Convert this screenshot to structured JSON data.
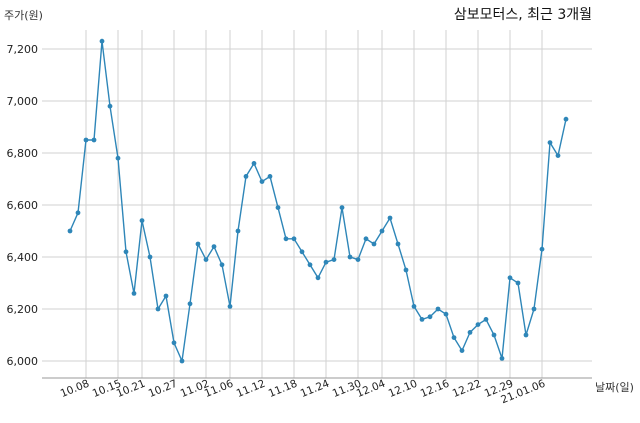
{
  "chart_data": {
    "type": "line",
    "title": "삼보모터스, 최근 3개월",
    "xlabel": "날짜(일)",
    "ylabel": "주가(원)",
    "ylim": [
      5950,
      7300
    ],
    "y_ticks": [
      6000,
      6200,
      6400,
      6600,
      6800,
      7000,
      7200
    ],
    "y_tick_labels": [
      "6,000",
      "6,200",
      "6,400",
      "6,600",
      "6,800",
      "7,000",
      "7,200"
    ],
    "x_tick_labels": [
      "10.08",
      "10.15",
      "10.21",
      "10.27",
      "11.02",
      "11.06",
      "11.12",
      "11.18",
      "11.24",
      "11.30",
      "12.04",
      "12.10",
      "12.16",
      "12.22",
      "12.29",
      "21.01.06"
    ],
    "x_tick_indices": [
      2,
      6,
      9,
      13,
      17,
      20,
      24,
      28,
      32,
      36,
      39,
      43,
      47,
      51,
      55,
      59
    ],
    "grid": true,
    "line_color": "#2e86b8",
    "series": [
      {
        "values": [
          6500,
          6570,
          6850,
          6850,
          7230,
          6980,
          6780,
          6420,
          6260,
          6540,
          6400,
          6200,
          6250,
          6070,
          6000,
          6220,
          6450,
          6390,
          6440,
          6370,
          6210,
          6500,
          6710,
          6760,
          6690,
          6710,
          6590,
          6470,
          6470,
          6420,
          6370,
          6320,
          6380,
          6390,
          6590,
          6400,
          6390,
          6470,
          6450,
          6500,
          6550,
          6450,
          6350,
          6210,
          6160,
          6170,
          6200,
          6180,
          6090,
          6040,
          6110,
          6140,
          6160,
          6100,
          6010,
          6320,
          6300,
          6100,
          6200,
          6430,
          6840,
          6790,
          6930
        ]
      }
    ]
  }
}
